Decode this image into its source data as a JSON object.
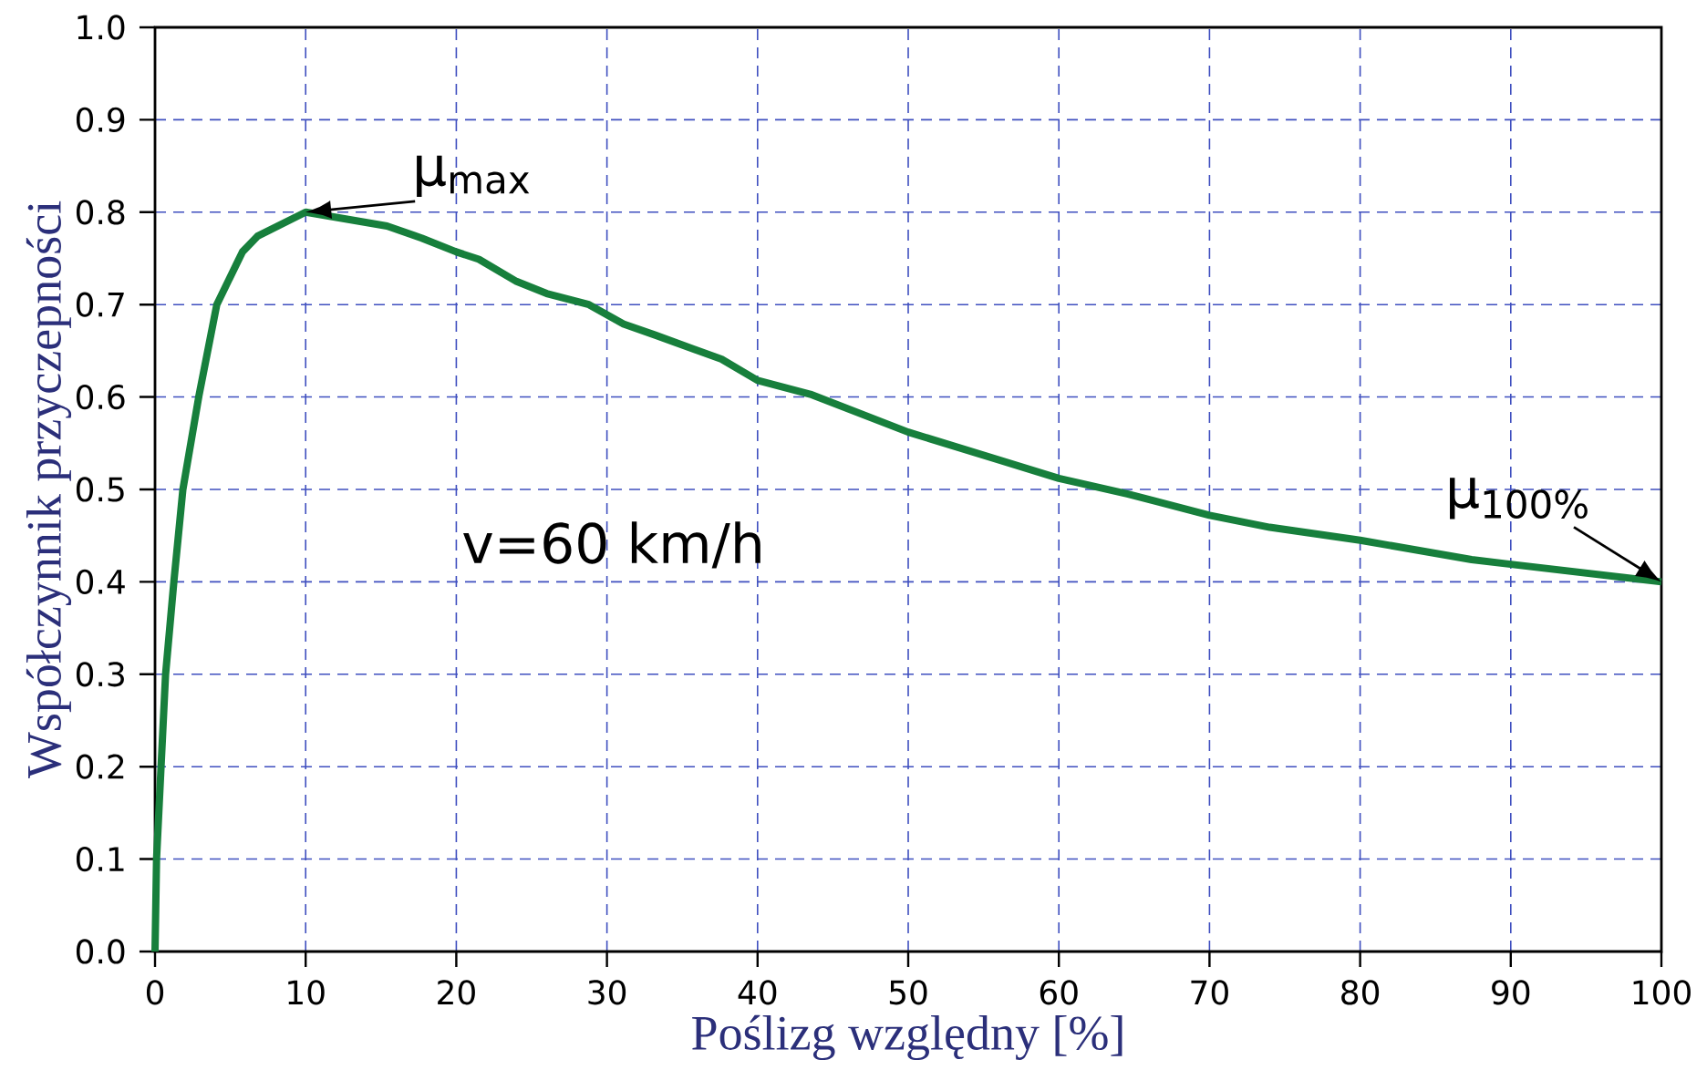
{
  "chart_data": {
    "type": "line",
    "xlabel": "Poślizg względny [%]",
    "ylabel": "Współczynnik przyczepności",
    "xlim": [
      0,
      100
    ],
    "ylim": [
      0,
      1.0
    ],
    "xticks": [
      0,
      10,
      20,
      30,
      40,
      50,
      60,
      70,
      80,
      90,
      100
    ],
    "yticks": [
      {
        "value": 0,
        "label": "0.0"
      },
      0.1,
      0.2,
      0.3,
      0.4,
      0.5,
      0.6,
      0.7,
      0.8,
      0.9,
      {
        "value": 1.0,
        "label": "1.0"
      }
    ],
    "grid": true,
    "series": [
      {
        "color": "#177f3c",
        "x": [
          0,
          0.1,
          0.7,
          1.25,
          1.85,
          2.9,
          4.1,
          5.8,
          6.8,
          10,
          15.4,
          17.7,
          20,
          21.5,
          24,
          26,
          28.8,
          31.1,
          33.2,
          37.6,
          40,
          43.5,
          50,
          60,
          64.6,
          70,
          74,
          80,
          87.4,
          90,
          100
        ],
        "values": [
          0,
          0.1,
          0.3,
          0.4,
          0.5,
          0.6,
          0.7,
          0.757,
          0.774,
          0.8,
          0.785,
          0.772,
          0.757,
          0.749,
          0.725,
          0.712,
          0.7,
          0.679,
          0.667,
          0.641,
          0.618,
          0.603,
          0.562,
          0.512,
          0.495,
          0.472,
          0.459,
          0.445,
          0.424,
          0.419,
          0.4
        ]
      }
    ],
    "annotations": [
      {
        "text": "μ$_{max}$",
        "x": 10,
        "y": 0.8
      },
      {
        "text": "μ$_{100%}$",
        "x": 100,
        "y": 0.4
      },
      "v=60 km/h"
    ]
  }
}
